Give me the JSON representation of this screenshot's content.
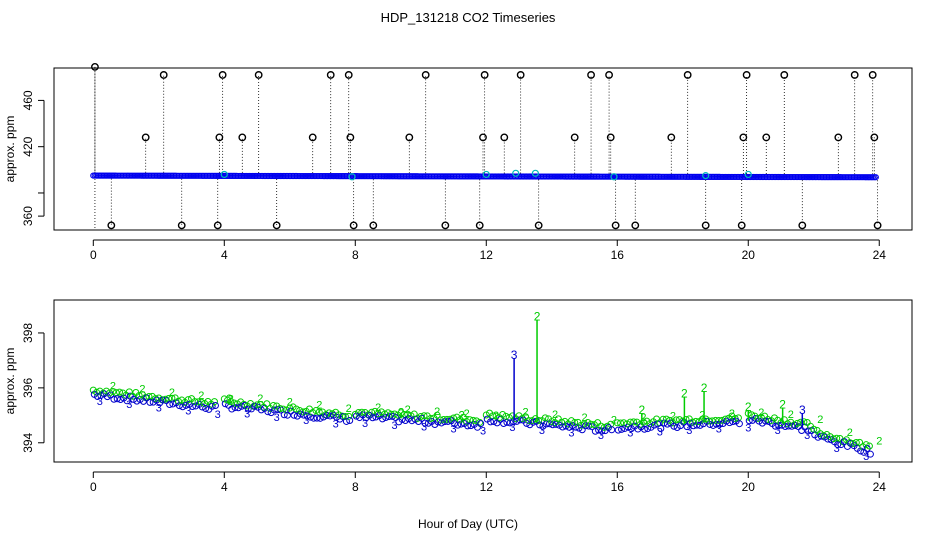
{
  "figure": {
    "title": "HDP_131218  CO2 Timeseries",
    "xlabel": "Hour of Day (UTC)"
  },
  "colors": {
    "flagged": "#000000",
    "raw": "#0000ee",
    "series3": "#0000cc",
    "series2": "#00cc00",
    "cyan": "#00bbbb"
  },
  "chart_data": [
    {
      "type": "scatter",
      "ylabel": "approx. ppm",
      "xlim": [
        -1.2,
        25
      ],
      "ylim": [
        348,
        488
      ],
      "x_ticks": [
        0,
        4,
        8,
        12,
        16,
        20,
        24
      ],
      "y_ticks": [
        360,
        380,
        420,
        460
      ],
      "y_tick_labels": [
        "360",
        "",
        "420",
        "460"
      ],
      "baseline": {
        "start": 395.0,
        "end": 393.6,
        "x_start": 0,
        "x_end": 23.9
      },
      "spikes": [
        {
          "x": 0.05,
          "y": 489
        },
        {
          "x": 0.55,
          "y": 352
        },
        {
          "x": 1.6,
          "y": 428
        },
        {
          "x": 2.15,
          "y": 482
        },
        {
          "x": 2.7,
          "y": 352
        },
        {
          "x": 3.8,
          "y": 352
        },
        {
          "x": 3.85,
          "y": 428
        },
        {
          "x": 3.95,
          "y": 482
        },
        {
          "x": 4.55,
          "y": 428
        },
        {
          "x": 5.05,
          "y": 482
        },
        {
          "x": 5.6,
          "y": 352
        },
        {
          "x": 6.7,
          "y": 428
        },
        {
          "x": 7.25,
          "y": 482
        },
        {
          "x": 7.8,
          "y": 482
        },
        {
          "x": 7.85,
          "y": 428
        },
        {
          "x": 7.95,
          "y": 352
        },
        {
          "x": 8.55,
          "y": 352
        },
        {
          "x": 9.65,
          "y": 428
        },
        {
          "x": 10.15,
          "y": 482
        },
        {
          "x": 10.75,
          "y": 352
        },
        {
          "x": 11.8,
          "y": 352
        },
        {
          "x": 11.9,
          "y": 428
        },
        {
          "x": 11.95,
          "y": 482
        },
        {
          "x": 12.55,
          "y": 428
        },
        {
          "x": 13.05,
          "y": 482
        },
        {
          "x": 13.6,
          "y": 352
        },
        {
          "x": 14.7,
          "y": 428
        },
        {
          "x": 15.2,
          "y": 482
        },
        {
          "x": 15.75,
          "y": 482
        },
        {
          "x": 15.8,
          "y": 428
        },
        {
          "x": 15.95,
          "y": 352
        },
        {
          "x": 16.55,
          "y": 352
        },
        {
          "x": 17.65,
          "y": 428
        },
        {
          "x": 18.15,
          "y": 482
        },
        {
          "x": 18.7,
          "y": 352
        },
        {
          "x": 19.8,
          "y": 352
        },
        {
          "x": 19.85,
          "y": 428
        },
        {
          "x": 19.95,
          "y": 482
        },
        {
          "x": 20.55,
          "y": 428
        },
        {
          "x": 21.1,
          "y": 482
        },
        {
          "x": 21.65,
          "y": 352
        },
        {
          "x": 22.75,
          "y": 428
        },
        {
          "x": 23.25,
          "y": 482
        },
        {
          "x": 23.8,
          "y": 482
        },
        {
          "x": 23.85,
          "y": 428
        },
        {
          "x": 23.95,
          "y": 352
        }
      ],
      "cyan_points": [
        {
          "x": 4.0,
          "y": 396
        },
        {
          "x": 7.9,
          "y": 394
        },
        {
          "x": 12.0,
          "y": 396
        },
        {
          "x": 12.9,
          "y": 397
        },
        {
          "x": 13.5,
          "y": 397
        },
        {
          "x": 15.9,
          "y": 394
        },
        {
          "x": 18.7,
          "y": 395
        },
        {
          "x": 20.0,
          "y": 396
        }
      ]
    },
    {
      "type": "scatter",
      "ylabel": "approx. ppm",
      "xlim": [
        -1.2,
        25
      ],
      "ylim": [
        393.3,
        399.2
      ],
      "x_ticks": [
        0,
        4,
        8,
        12,
        16,
        20,
        24
      ],
      "y_ticks": [
        394,
        396,
        398
      ],
      "series_labels": [
        "3",
        "2"
      ],
      "segments": [
        {
          "x0": 0.0,
          "x1": 3.8,
          "y0": 395.8,
          "y1": 395.3
        },
        {
          "x0": 4.0,
          "x1": 7.8,
          "y0": 395.4,
          "y1": 394.9
        },
        {
          "x0": 8.0,
          "x1": 11.8,
          "y0": 395.0,
          "y1": 394.7
        },
        {
          "x0": 12.0,
          "x1": 15.8,
          "y0": 394.9,
          "y1": 394.5
        },
        {
          "x0": 16.0,
          "x1": 19.8,
          "y0": 394.6,
          "y1": 394.8
        },
        {
          "x0": 20.0,
          "x1": 22.0,
          "y0": 394.9,
          "y1": 394.5
        },
        {
          "x0": 22.0,
          "x1": 23.8,
          "y0": 394.3,
          "y1": 393.7
        }
      ],
      "spikes": [
        {
          "series": "3",
          "x": 12.85,
          "y": 397.2
        },
        {
          "series": "2",
          "x": 13.55,
          "y": 398.6
        },
        {
          "series": "2",
          "x": 16.75,
          "y": 395.2
        },
        {
          "series": "2",
          "x": 18.05,
          "y": 395.8
        },
        {
          "series": "2",
          "x": 18.65,
          "y": 396.0
        },
        {
          "series": "2",
          "x": 20.0,
          "y": 395.3
        },
        {
          "series": "2",
          "x": 21.05,
          "y": 395.4
        },
        {
          "series": "3",
          "x": 21.65,
          "y": 395.2
        },
        {
          "series": "2",
          "x": 4.15,
          "y": 395.6
        },
        {
          "series": "2",
          "x": 9.4,
          "y": 395.1
        },
        {
          "series": "2",
          "x": 11.25,
          "y": 395.0
        }
      ]
    }
  ]
}
